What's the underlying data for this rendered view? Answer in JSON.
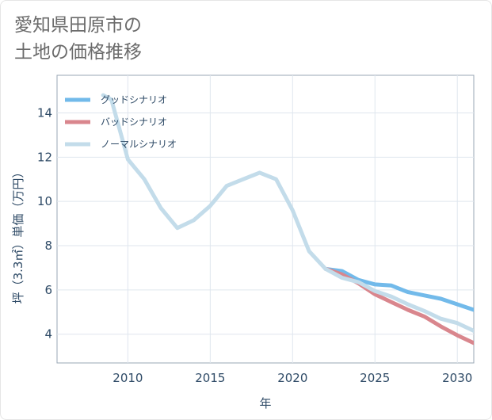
{
  "title_line1": "愛知県田原市の",
  "title_line2": "土地の価格推移",
  "colors": {
    "good": "#72baea",
    "bad": "#d9868d",
    "normal": "#c3dcea",
    "grid": "#dfe6ee",
    "axis_text": "#2e4a66",
    "title": "#6b6b6b"
  },
  "chart_data": {
    "type": "line",
    "xlabel": "年",
    "ylabel": "坪（3.3㎡）単価（万円）",
    "xlim": [
      2005.7,
      2031
    ],
    "ylim": [
      2.7,
      15.7
    ],
    "x_ticks": [
      2010,
      2015,
      2020,
      2025,
      2030
    ],
    "y_ticks": [
      4,
      6,
      8,
      10,
      12,
      14
    ],
    "grid": true,
    "legend_position": "top-left",
    "series": [
      {
        "name": "グッドシナリオ",
        "color_key": "good",
        "x": [
          2022,
          2023,
          2024,
          2025,
          2026,
          2027,
          2028,
          2029,
          2030,
          2031
        ],
        "y": [
          6.95,
          6.85,
          6.45,
          6.25,
          6.2,
          5.9,
          5.75,
          5.6,
          5.35,
          5.1
        ]
      },
      {
        "name": "バッドシナリオ",
        "color_key": "bad",
        "x": [
          2022,
          2023,
          2024,
          2025,
          2026,
          2027,
          2028,
          2029,
          2030,
          2031
        ],
        "y": [
          6.95,
          6.7,
          6.3,
          5.8,
          5.45,
          5.1,
          4.8,
          4.35,
          3.95,
          3.6
        ]
      },
      {
        "name": "ノーマルシナリオ",
        "color_key": "normal",
        "x": [
          2008.5,
          2009,
          2010,
          2011,
          2012,
          2013,
          2014,
          2015,
          2016,
          2017,
          2018,
          2019,
          2020,
          2021,
          2022,
          2023,
          2024,
          2025,
          2026,
          2027,
          2028,
          2029,
          2030,
          2031
        ],
        "y": [
          14.8,
          14.6,
          11.9,
          11.0,
          9.7,
          8.8,
          9.15,
          9.8,
          10.7,
          11.0,
          11.3,
          11.0,
          9.6,
          7.75,
          6.95,
          6.55,
          6.35,
          5.95,
          5.7,
          5.35,
          5.05,
          4.7,
          4.5,
          4.15
        ]
      }
    ]
  }
}
